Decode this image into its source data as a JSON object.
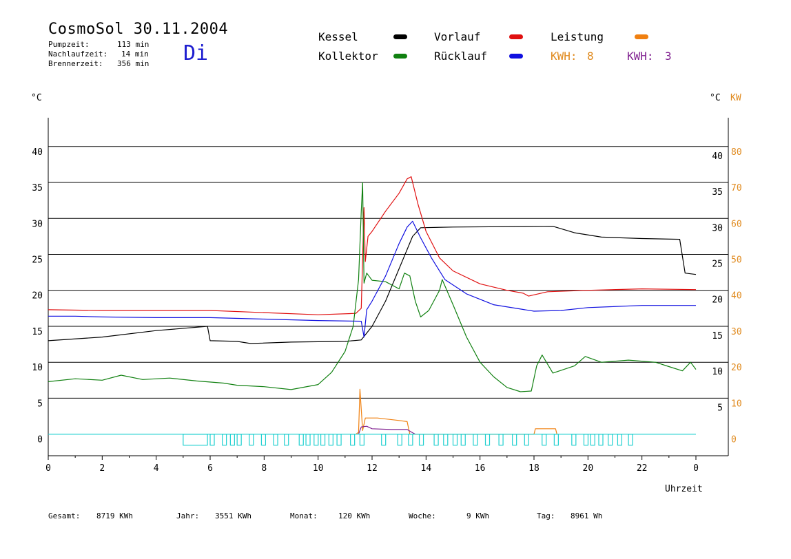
{
  "header": {
    "title": "CosmoSol 30.11.2004",
    "day": "Di",
    "stats": [
      {
        "label": "Pumpzeit:",
        "value": "113 min"
      },
      {
        "label": "Nachlaufzeit:",
        "value": "14 min"
      },
      {
        "label": "Brennerzeit:",
        "value": "356 min"
      }
    ]
  },
  "legend": [
    {
      "name": "Kessel",
      "color": "#000000"
    },
    {
      "name": "Vorlauf",
      "color": "#e01010"
    },
    {
      "name": "Leistung",
      "color": "#f08010"
    },
    {
      "name": "Kollektor",
      "color": "#108010"
    },
    {
      "name": "Rücklauf",
      "color": "#1010e0"
    }
  ],
  "kwh": [
    {
      "label": "KWH:",
      "value": "8",
      "color": "#e08a1e"
    },
    {
      "label": "KWH:",
      "value": "3",
      "color": "#802090"
    }
  ],
  "footer": [
    {
      "label": "Gesamt:",
      "value": "8719 KWh"
    },
    {
      "label": "Jahr:",
      "value": "3551 KWh"
    },
    {
      "label": "Monat:",
      "value": "120 KWh"
    },
    {
      "label": "Woche:",
      "value": "9 KWh"
    },
    {
      "label": "Tag:",
      "value": "8961 Wh"
    }
  ],
  "chart_data": {
    "type": "line",
    "xlabel": "Uhrzeit",
    "ylabel_left": "°C",
    "ylabel_right": "°C",
    "ylabel_right2": "KW",
    "xlim": [
      0,
      24
    ],
    "ylim": [
      -3,
      44
    ],
    "y2lim": [
      -6,
      88
    ],
    "x_ticks": [
      "0",
      "2",
      "4",
      "6",
      "8",
      "10",
      "12",
      "14",
      "16",
      "18",
      "20",
      "22",
      "0"
    ],
    "y_left_ticks": [
      0,
      5,
      10,
      15,
      20,
      25,
      30,
      35,
      40
    ],
    "y_right_ticks": [
      5,
      10,
      15,
      20,
      25,
      30,
      35,
      40
    ],
    "y_right2_ticks": [
      0,
      10,
      20,
      30,
      40,
      50,
      60,
      70,
      80
    ],
    "grid": true,
    "series": [
      {
        "name": "Kessel",
        "color": "#000000",
        "points": [
          [
            0,
            13
          ],
          [
            2,
            13.5
          ],
          [
            4,
            14.4
          ],
          [
            5.9,
            15
          ],
          [
            6,
            13
          ],
          [
            7,
            12.9
          ],
          [
            7.5,
            12.6
          ],
          [
            9,
            12.8
          ],
          [
            11,
            12.9
          ],
          [
            11.6,
            13.1
          ],
          [
            12,
            15
          ],
          [
            12.5,
            18.5
          ],
          [
            13,
            23
          ],
          [
            13.5,
            27.5
          ],
          [
            13.8,
            28.7
          ],
          [
            15,
            28.8
          ],
          [
            18.7,
            28.9
          ],
          [
            19.5,
            28
          ],
          [
            20.5,
            27.4
          ],
          [
            22,
            27.2
          ],
          [
            23.4,
            27.1
          ],
          [
            23.6,
            22.4
          ],
          [
            24,
            22.2
          ]
        ]
      },
      {
        "name": "Vorlauf",
        "color": "#e01010",
        "points": [
          [
            0,
            17.3
          ],
          [
            2,
            17.2
          ],
          [
            4,
            17.2
          ],
          [
            6,
            17.2
          ],
          [
            8,
            16.9
          ],
          [
            10,
            16.6
          ],
          [
            11.4,
            16.8
          ],
          [
            11.6,
            17.5
          ],
          [
            11.7,
            31.5
          ],
          [
            11.75,
            24
          ],
          [
            11.85,
            27.5
          ],
          [
            12,
            28.2
          ],
          [
            12.5,
            31
          ],
          [
            13,
            33.5
          ],
          [
            13.3,
            35.5
          ],
          [
            13.45,
            35.8
          ],
          [
            13.7,
            32
          ],
          [
            14,
            28.2
          ],
          [
            14.5,
            24.5
          ],
          [
            15,
            22.7
          ],
          [
            16,
            20.9
          ],
          [
            17,
            20
          ],
          [
            17.6,
            19.6
          ],
          [
            17.8,
            19.2
          ],
          [
            18.5,
            19.8
          ],
          [
            20,
            20
          ],
          [
            22,
            20.2
          ],
          [
            24,
            20.1
          ]
        ]
      },
      {
        "name": "Kollektor",
        "color": "#108010",
        "points": [
          [
            0,
            7.3
          ],
          [
            1,
            7.7
          ],
          [
            2,
            7.5
          ],
          [
            2.7,
            8.2
          ],
          [
            3.5,
            7.6
          ],
          [
            4.5,
            7.8
          ],
          [
            5.5,
            7.4
          ],
          [
            6.5,
            7.1
          ],
          [
            7,
            6.8
          ],
          [
            8,
            6.6
          ],
          [
            9,
            6.2
          ],
          [
            10,
            6.9
          ],
          [
            10.5,
            8.6
          ],
          [
            11,
            11.5
          ],
          [
            11.3,
            15
          ],
          [
            11.5,
            21.5
          ],
          [
            11.6,
            31
          ],
          [
            11.65,
            35
          ],
          [
            11.7,
            21
          ],
          [
            11.8,
            22.4
          ],
          [
            12,
            21.4
          ],
          [
            12.5,
            21.2
          ],
          [
            13,
            20.2
          ],
          [
            13.2,
            22.4
          ],
          [
            13.4,
            22
          ],
          [
            13.6,
            18.5
          ],
          [
            13.8,
            16.3
          ],
          [
            14.1,
            17.2
          ],
          [
            14.5,
            20
          ],
          [
            14.6,
            21.5
          ],
          [
            15,
            18
          ],
          [
            15.5,
            13.5
          ],
          [
            16,
            10
          ],
          [
            16.5,
            8
          ],
          [
            17,
            6.5
          ],
          [
            17.5,
            5.9
          ],
          [
            17.9,
            6
          ],
          [
            18.1,
            9.5
          ],
          [
            18.3,
            11
          ],
          [
            18.7,
            8.5
          ],
          [
            19.5,
            9.5
          ],
          [
            19.9,
            10.8
          ],
          [
            20.5,
            10
          ],
          [
            21.5,
            10.3
          ],
          [
            22.5,
            10
          ],
          [
            23,
            9.4
          ],
          [
            23.5,
            8.8
          ],
          [
            23.8,
            10
          ],
          [
            24,
            9
          ]
        ]
      },
      {
        "name": "Rücklauf",
        "color": "#1010e0",
        "points": [
          [
            0,
            16.4
          ],
          [
            1,
            16.4
          ],
          [
            2,
            16.3
          ],
          [
            4,
            16.2
          ],
          [
            6,
            16.2
          ],
          [
            8,
            16
          ],
          [
            10,
            15.8
          ],
          [
            11.6,
            15.7
          ],
          [
            11.7,
            13.5
          ],
          [
            11.8,
            17.3
          ],
          [
            12,
            18.5
          ],
          [
            12.5,
            22
          ],
          [
            13,
            26.5
          ],
          [
            13.3,
            28.8
          ],
          [
            13.5,
            29.6
          ],
          [
            13.8,
            27.3
          ],
          [
            14.2,
            24.5
          ],
          [
            14.7,
            21.5
          ],
          [
            15.5,
            19.5
          ],
          [
            16.5,
            18
          ],
          [
            17.5,
            17.4
          ],
          [
            18,
            17.1
          ],
          [
            19,
            17.2
          ],
          [
            20,
            17.6
          ],
          [
            22,
            17.9
          ],
          [
            24,
            17.9
          ]
        ]
      },
      {
        "name": "Leistung",
        "color": "#f08010",
        "axis": "kw",
        "points": [
          [
            11.4,
            0
          ],
          [
            11.5,
            0.5
          ],
          [
            11.55,
            12.5
          ],
          [
            11.65,
            1
          ],
          [
            11.75,
            4.5
          ],
          [
            12.2,
            4.5
          ],
          [
            13,
            3.8
          ],
          [
            13.3,
            3.5
          ],
          [
            13.4,
            0
          ],
          [
            18,
            0
          ],
          [
            18.05,
            1.5
          ],
          [
            18.8,
            1.5
          ],
          [
            18.85,
            0
          ]
        ]
      },
      {
        "name": "KWH",
        "color": "#802090",
        "axis": "kw",
        "points": [
          [
            11.5,
            0
          ],
          [
            11.6,
            2
          ],
          [
            11.8,
            2.2
          ],
          [
            12,
            1.5
          ],
          [
            12.7,
            1.3
          ],
          [
            13.3,
            1.3
          ],
          [
            13.5,
            0.4
          ],
          [
            13.6,
            0
          ]
        ]
      }
    ]
  }
}
